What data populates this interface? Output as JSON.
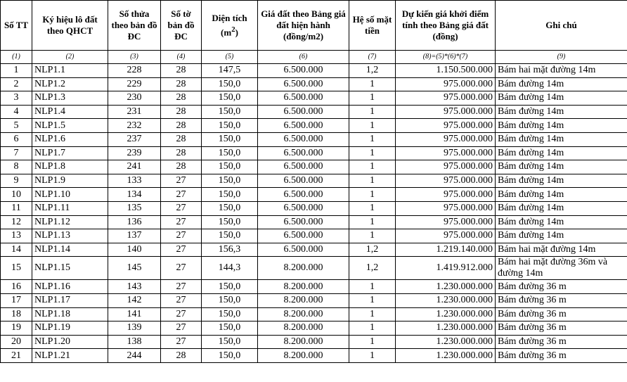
{
  "table": {
    "header": [
      {
        "text": "Số TT"
      },
      {
        "text": "Ký hiệu lô đất theo QHCT"
      },
      {
        "text": "Số thửa theo bản đồ ĐC"
      },
      {
        "text": "Số tờ bản đồ ĐC"
      },
      {
        "text": "Diện tích (m",
        "sup": "2",
        "tail": ")"
      },
      {
        "text": "Giá đất theo Bảng giá đất hiện hành (đồng/m2)"
      },
      {
        "text": "Hệ số mặt tiền"
      },
      {
        "text": "Dự kiến giá khởi điểm tính theo Bảng giá đất (đồng)"
      },
      {
        "text": "Ghi chú"
      }
    ],
    "index_row": [
      "(1)",
      "(2)",
      "(3)",
      "(4)",
      "(5)",
      "(6)",
      "(7)",
      "(8)=(5)*(6)*(7)",
      "(9)"
    ],
    "rows": [
      [
        "1",
        "NLP1.1",
        "228",
        "28",
        "147,5",
        "6.500.000",
        "1,2",
        "1.150.500.000",
        "Bám hai mặt đường 14m"
      ],
      [
        "2",
        "NLP1.2",
        "229",
        "28",
        "150,0",
        "6.500.000",
        "1",
        "975.000.000",
        "Bám đường 14m"
      ],
      [
        "3",
        "NLP1.3",
        "230",
        "28",
        "150,0",
        "6.500.000",
        "1",
        "975.000.000",
        "Bám đường 14m"
      ],
      [
        "4",
        "NLP1.4",
        "231",
        "28",
        "150,0",
        "6.500.000",
        "1",
        "975.000.000",
        "Bám đường 14m"
      ],
      [
        "5",
        "NLP1.5",
        "232",
        "28",
        "150,0",
        "6.500.000",
        "1",
        "975.000.000",
        "Bám đường 14m"
      ],
      [
        "6",
        "NLP1.6",
        "237",
        "28",
        "150,0",
        "6.500.000",
        "1",
        "975.000.000",
        "Bám đường 14m"
      ],
      [
        "7",
        "NLP1.7",
        "239",
        "28",
        "150,0",
        "6.500.000",
        "1",
        "975.000.000",
        "Bám đường 14m"
      ],
      [
        "8",
        "NLP1.8",
        "241",
        "28",
        "150,0",
        "6.500.000",
        "1",
        "975.000.000",
        "Bám đường 14m"
      ],
      [
        "9",
        "NLP1.9",
        "133",
        "27",
        "150,0",
        "6.500.000",
        "1",
        "975.000.000",
        "Bám đường 14m"
      ],
      [
        "10",
        "NLP1.10",
        "134",
        "27",
        "150,0",
        "6.500.000",
        "1",
        "975.000.000",
        "Bám đường 14m"
      ],
      [
        "11",
        "NLP1.11",
        "135",
        "27",
        "150,0",
        "6.500.000",
        "1",
        "975.000.000",
        "Bám đường 14m"
      ],
      [
        "12",
        "NLP1.12",
        "136",
        "27",
        "150,0",
        "6.500.000",
        "1",
        "975.000.000",
        "Bám đường 14m"
      ],
      [
        "13",
        "NLP1.13",
        "137",
        "27",
        "150,0",
        "6.500.000",
        "1",
        "975.000.000",
        "Bám đường 14m"
      ],
      [
        "14",
        "NLP1.14",
        "140",
        "27",
        "156,3",
        "6.500.000",
        "1,2",
        "1.219.140.000",
        "Bám hai mặt đường 14m"
      ],
      [
        "15",
        "NLP1.15",
        "145",
        "27",
        "144,3",
        "8.200.000",
        "1,2",
        "1.419.912.000",
        "Bám hai mặt đường 36m và đường 14m"
      ],
      [
        "16",
        "NLP1.16",
        "143",
        "27",
        "150,0",
        "8.200.000",
        "1",
        "1.230.000.000",
        "Bám đường 36 m"
      ],
      [
        "17",
        "NLP1.17",
        "142",
        "27",
        "150,0",
        "8.200.000",
        "1",
        "1.230.000.000",
        "Bám đường 36 m"
      ],
      [
        "18",
        "NLP1.18",
        "141",
        "27",
        "150,0",
        "8.200.000",
        "1",
        "1.230.000.000",
        "Bám đường 36 m"
      ],
      [
        "19",
        "NLP1.19",
        "139",
        "27",
        "150,0",
        "8.200.000",
        "1",
        "1.230.000.000",
        "Bám đường 36 m"
      ],
      [
        "20",
        "NLP1.20",
        "138",
        "27",
        "150,0",
        "8.200.000",
        "1",
        "1.230.000.000",
        "Bám đường 36 m"
      ],
      [
        "21",
        "NLP1.21",
        "244",
        "28",
        "150,0",
        "8.200.000",
        "1",
        "1.230.000.000",
        "Bám đường 36 m"
      ]
    ]
  }
}
